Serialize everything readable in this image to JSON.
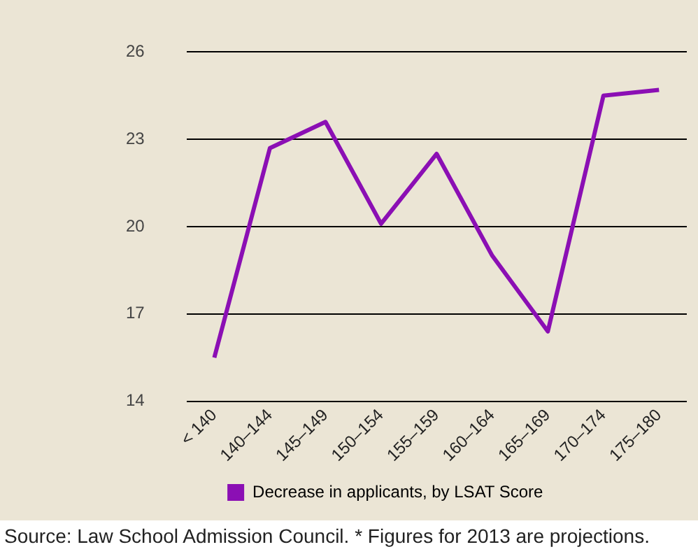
{
  "chart_data": {
    "type": "line",
    "categories": [
      "< 140",
      "140–144",
      "145–149",
      "150–154",
      "155–159",
      "160–164",
      "165–169",
      "170–174",
      "175–180"
    ],
    "series": [
      {
        "name": "Decrease in applicants, by LSAT Score",
        "color": "#8b0fb4",
        "values": [
          15.5,
          22.7,
          23.6,
          20.1,
          22.5,
          19.0,
          16.4,
          24.5,
          24.7
        ]
      }
    ],
    "ylim": [
      14,
      26
    ],
    "yticks": [
      14,
      17,
      20,
      23,
      26
    ],
    "grid": "y",
    "legend": "bottom",
    "marker": "none",
    "line_style": "solid",
    "annotations": [
      "Source: Law School Admission Council. * Figures for 2013 are projections."
    ]
  }
}
